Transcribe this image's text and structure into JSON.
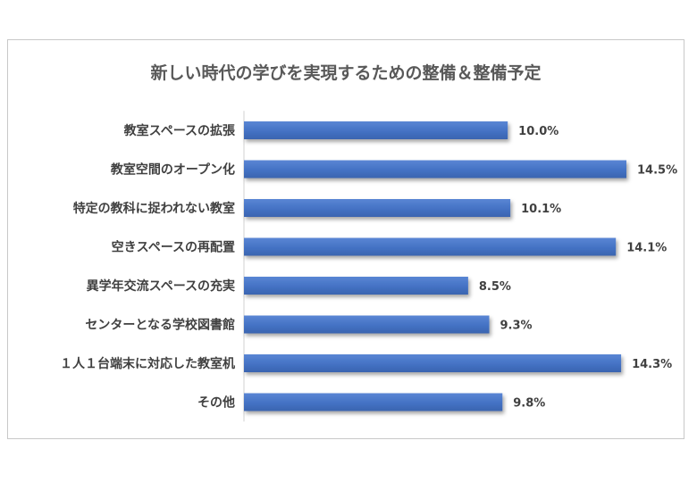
{
  "chart_data": {
    "type": "bar",
    "orientation": "horizontal",
    "title": "新しい時代の学びを実現するための整備＆整備予定",
    "categories": [
      "教室スペースの拡張",
      "教室空間のオープン化",
      "特定の教科に捉われない教室",
      "空きスペースの再配置",
      "異学年交流スペースの充実",
      "センターとなる学校図書館",
      "１人１台端末に対応した教室机",
      "その他"
    ],
    "values": [
      10.0,
      14.5,
      10.1,
      14.1,
      8.5,
      9.3,
      14.3,
      9.8
    ],
    "data_labels": [
      "10.0%",
      "14.5%",
      "10.1%",
      "14.1%",
      "8.5%",
      "9.3%",
      "14.3%",
      "9.8%"
    ],
    "xlim": [
      0,
      14.5
    ],
    "grid": false,
    "legend": "none",
    "bar_color": "#4472c4"
  }
}
